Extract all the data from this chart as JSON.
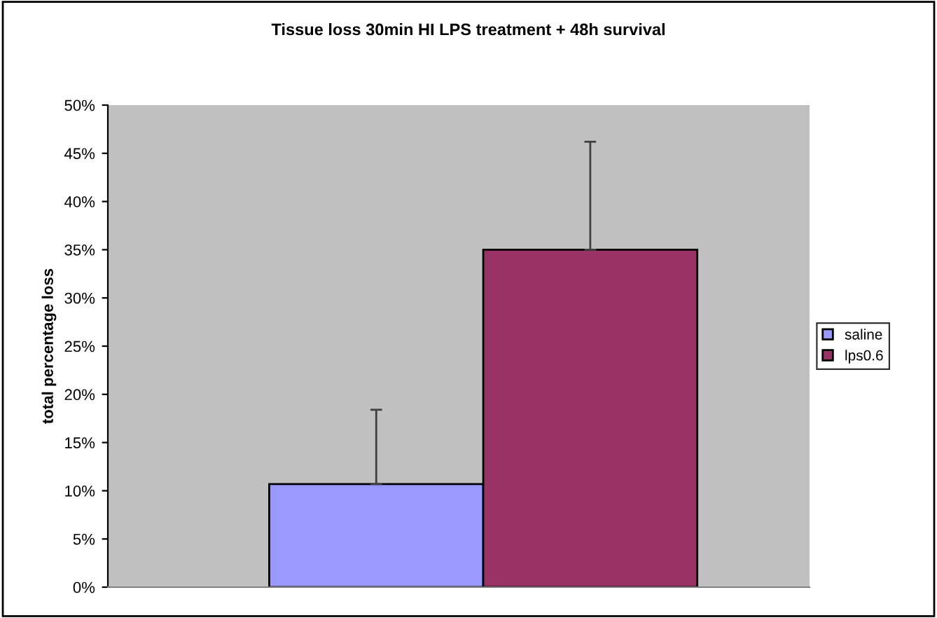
{
  "chart_data": {
    "type": "bar",
    "title": "Tissue loss 30min HI LPS treatment + 48h survival",
    "ylabel": "total percentage loss",
    "categories": [
      null
    ],
    "series": [
      {
        "name": "saline",
        "color": "#9999ff",
        "values": [
          10.7
        ],
        "errors": [
          [
            10.7,
            18.4
          ]
        ]
      },
      {
        "name": "lps0.6",
        "color": "#993366",
        "values": [
          35
        ],
        "errors": [
          [
            35,
            46.2
          ]
        ]
      }
    ],
    "ylim": [
      0,
      50
    ],
    "yticks": [
      {
        "value": 0,
        "label": "0%"
      },
      {
        "value": 5,
        "label": "5%"
      },
      {
        "value": 10,
        "label": "10%"
      },
      {
        "value": 15,
        "label": "15%"
      },
      {
        "value": 20,
        "label": "20%"
      },
      {
        "value": 25,
        "label": "25%"
      },
      {
        "value": 30,
        "label": "30%"
      },
      {
        "value": 35,
        "label": "35%"
      },
      {
        "value": 40,
        "label": "40%"
      },
      {
        "value": 45,
        "label": "45%"
      },
      {
        "value": 50,
        "label": "50%"
      }
    ],
    "grid": false,
    "legend": "right"
  }
}
